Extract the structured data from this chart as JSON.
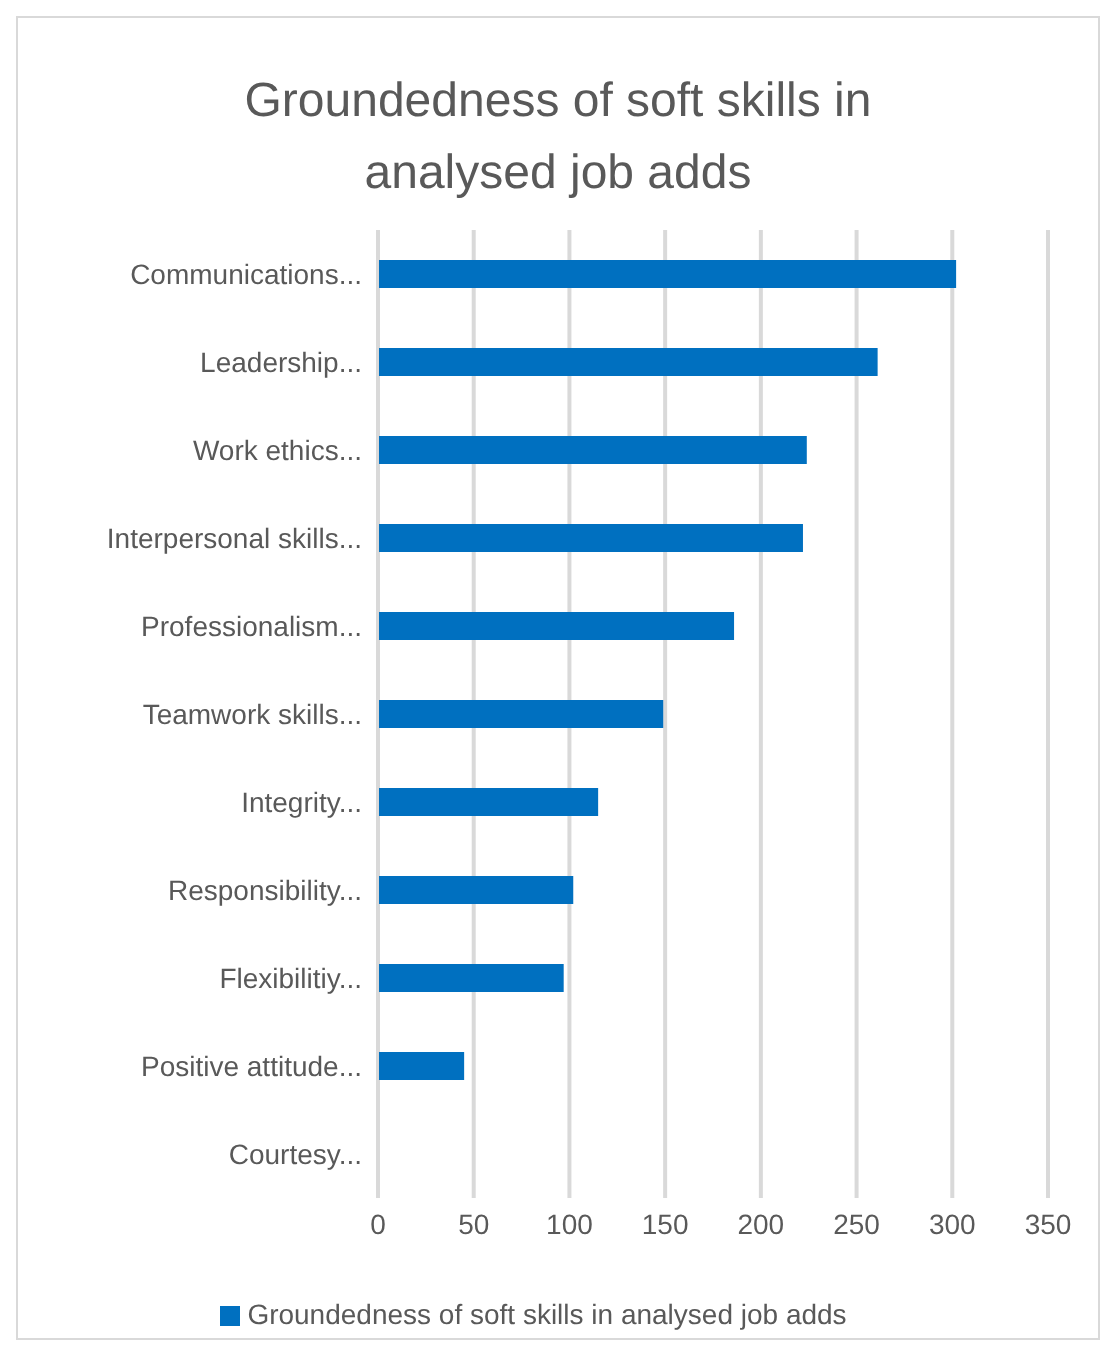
{
  "chart_data": {
    "type": "bar",
    "orientation": "horizontal",
    "title": "Groundedness  of soft skills in analysed job adds",
    "categories": [
      "Communications...",
      "Leadership...",
      "Work ethics...",
      "Interpersonal skills...",
      "Professionalism...",
      "Teamwork skills...",
      "Integrity...",
      "Responsibility...",
      "Flexibilitiy...",
      "Positive attitude...",
      "Courtesy..."
    ],
    "series": [
      {
        "name": "Groundedness of soft skills in analysed job adds",
        "color": "#0070c0",
        "values": [
          302,
          261,
          224,
          222,
          186,
          149,
          115,
          102,
          97,
          45,
          0
        ]
      }
    ],
    "xlim": [
      0,
      350
    ],
    "xticks": [
      0,
      50,
      100,
      150,
      200,
      250,
      300,
      350
    ],
    "grid": "x",
    "legend": "bottom"
  }
}
